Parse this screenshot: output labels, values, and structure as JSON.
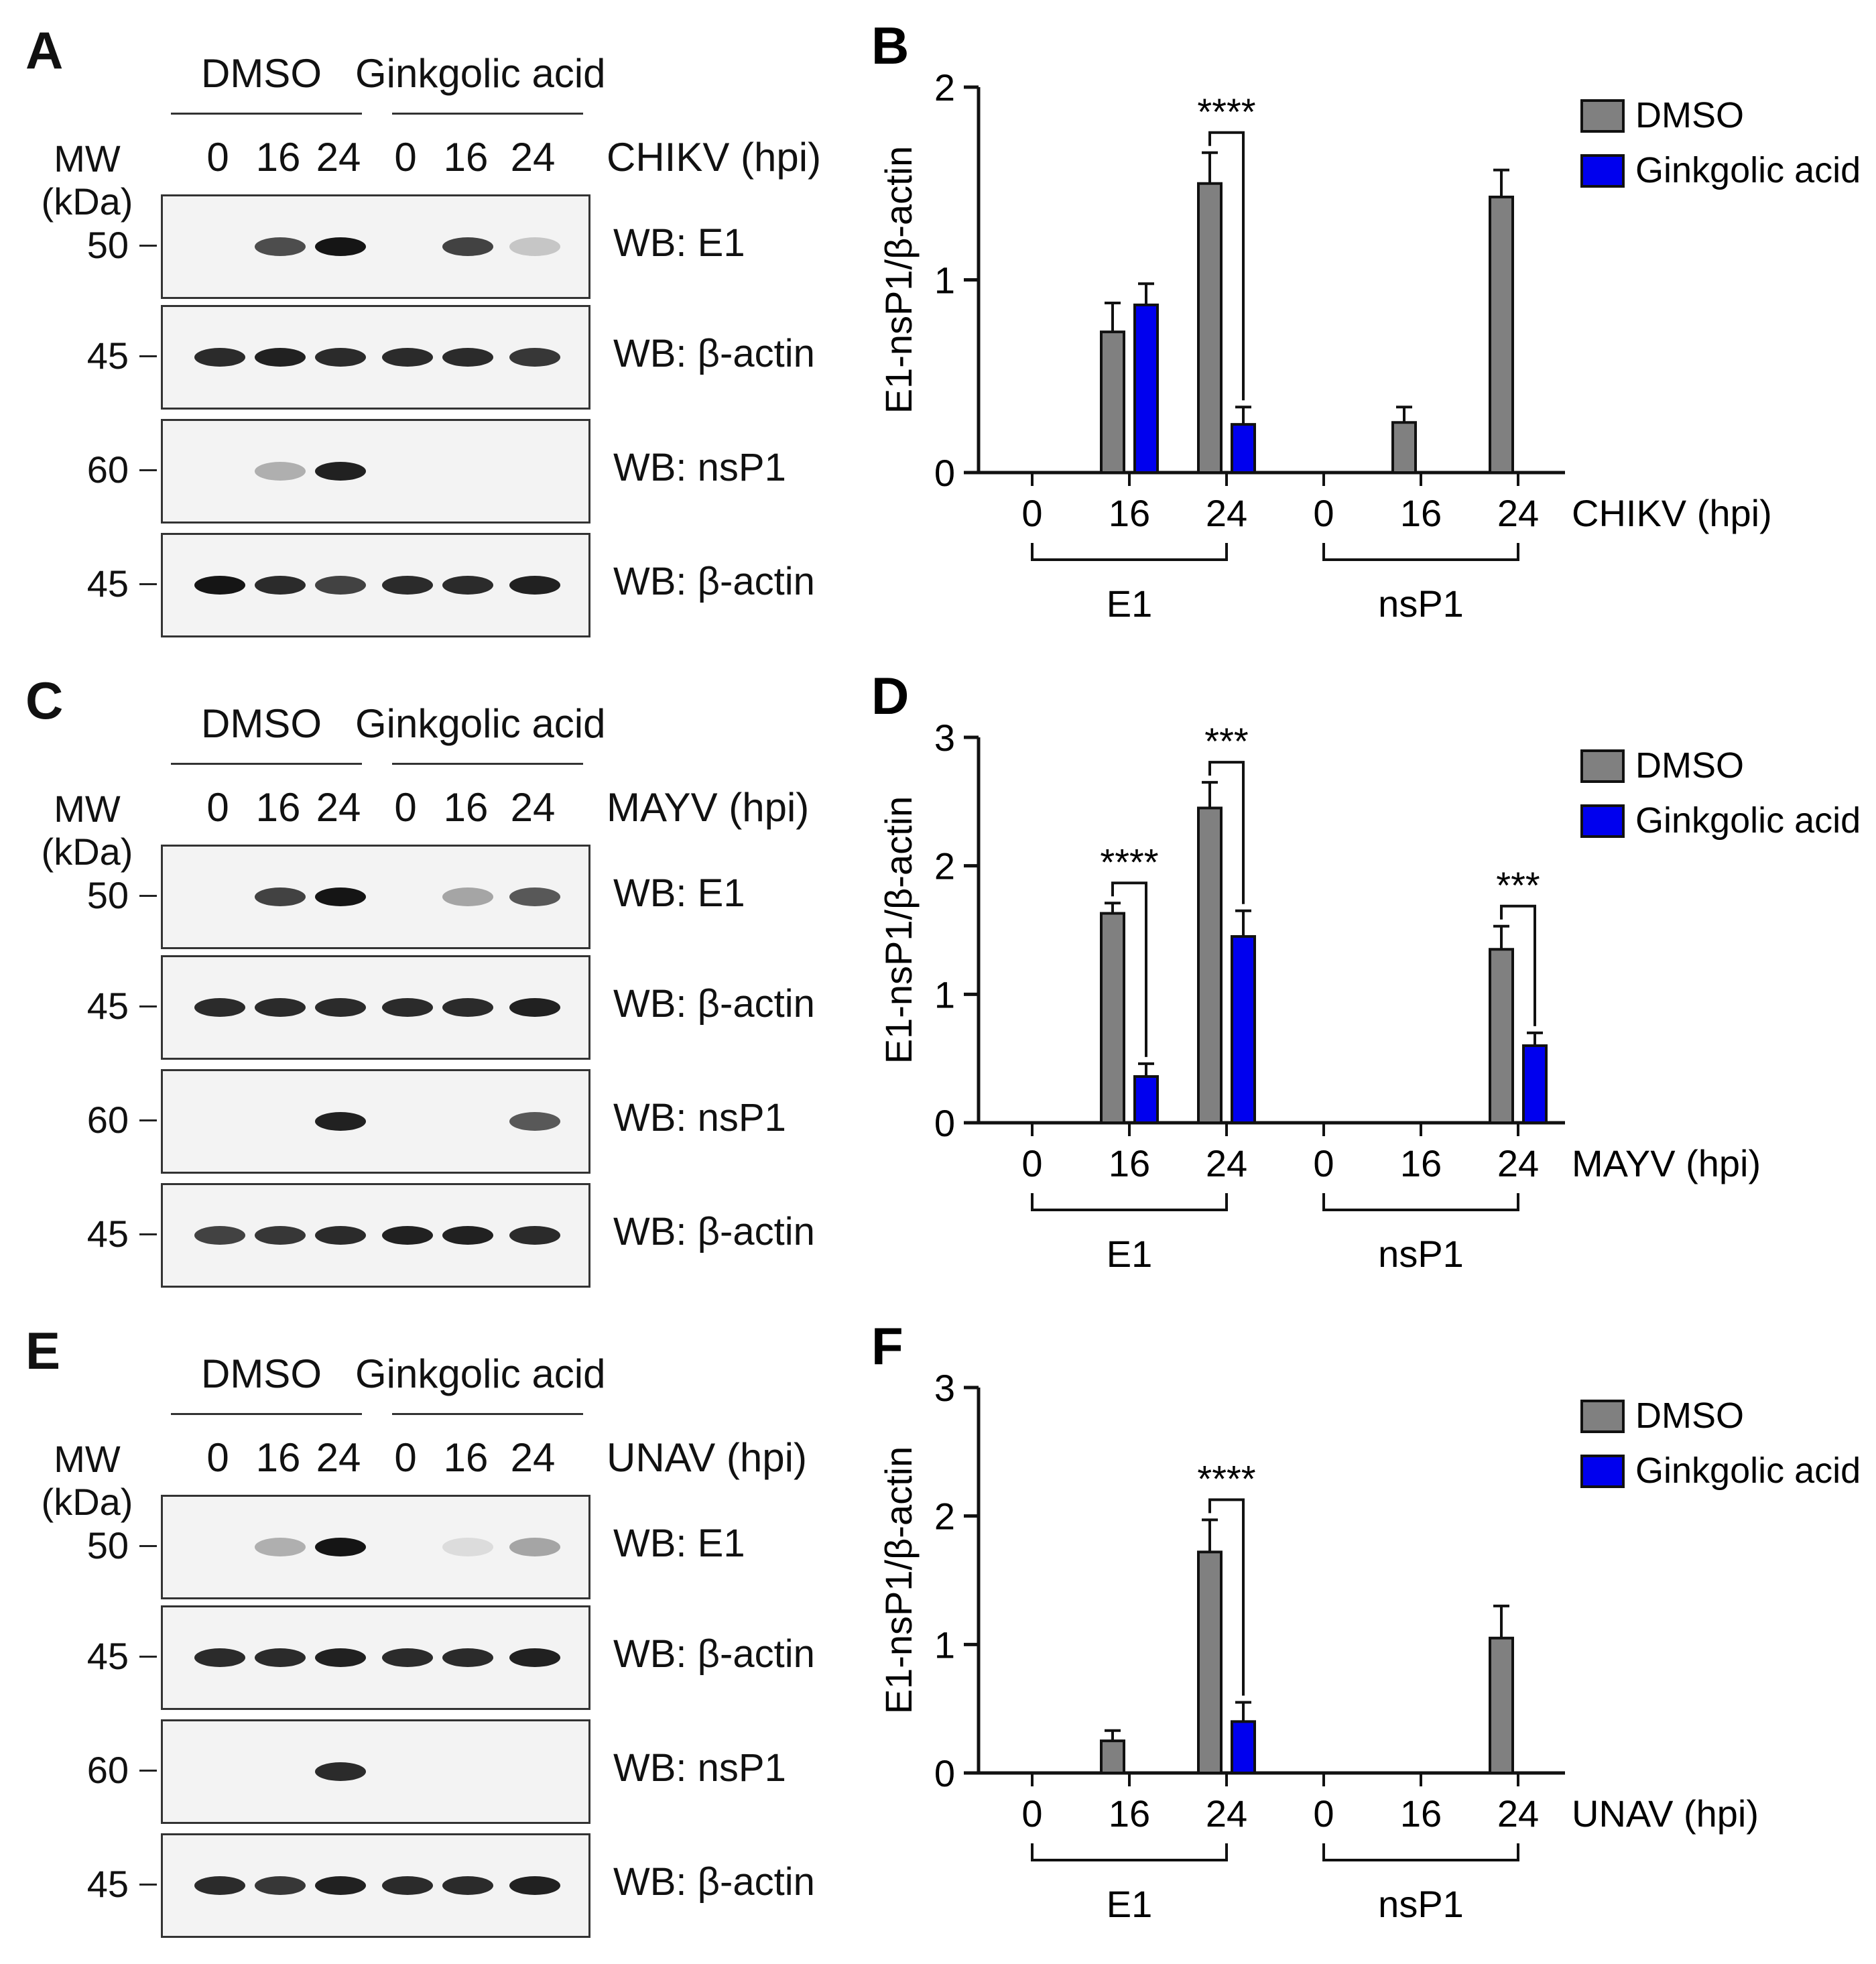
{
  "panels_blot": [
    {
      "letter": "A",
      "treatments": [
        "DMSO",
        "Ginkgolic acid"
      ],
      "lanes": [
        "0",
        "16",
        "24",
        "0",
        "16",
        "24"
      ],
      "virus_label": "CHIKV (hpi)",
      "mw_header": [
        "MW",
        "(kDa)"
      ],
      "blots": [
        {
          "mw": "50",
          "label": "WB: E1",
          "band_intensity": [
            0,
            0.75,
            1.0,
            0,
            0.8,
            0.2
          ]
        },
        {
          "mw": "45",
          "label": "WB: β-actin",
          "band_intensity": [
            0.9,
            0.95,
            0.9,
            0.9,
            0.9,
            0.85
          ]
        },
        {
          "mw": "60",
          "label": "WB: nsP1",
          "band_intensity": [
            0,
            0.3,
            0.95,
            0,
            0,
            0
          ]
        },
        {
          "mw": "45",
          "label": "WB: β-actin",
          "band_intensity": [
            1.0,
            0.9,
            0.8,
            0.9,
            0.9,
            0.95
          ]
        }
      ]
    },
    {
      "letter": "C",
      "treatments": [
        "DMSO",
        "Ginkgolic acid"
      ],
      "lanes": [
        "0",
        "16",
        "24",
        "0",
        "16",
        "24"
      ],
      "virus_label": "MAYV (hpi)",
      "mw_header": [
        "MW",
        "(kDa)"
      ],
      "blots": [
        {
          "mw": "50",
          "label": "WB: E1",
          "band_intensity": [
            0,
            0.8,
            1.0,
            0,
            0.35,
            0.7
          ]
        },
        {
          "mw": "45",
          "label": "WB: β-actin",
          "band_intensity": [
            0.9,
            0.9,
            0.9,
            0.9,
            0.9,
            0.95
          ]
        },
        {
          "mw": "60",
          "label": "WB: nsP1",
          "band_intensity": [
            0,
            0,
            0.95,
            0,
            0,
            0.7
          ]
        },
        {
          "mw": "45",
          "label": "WB: β-actin",
          "band_intensity": [
            0.8,
            0.85,
            0.9,
            0.95,
            0.95,
            0.9
          ]
        }
      ]
    },
    {
      "letter": "E",
      "treatments": [
        "DMSO",
        "Ginkgolic acid"
      ],
      "lanes": [
        "0",
        "16",
        "24",
        "0",
        "16",
        "24"
      ],
      "virus_label": "UNAV (hpi)",
      "mw_header": [
        "MW",
        "(kDa)"
      ],
      "blots": [
        {
          "mw": "50",
          "label": "WB: E1",
          "band_intensity": [
            0,
            0.3,
            1.0,
            0,
            0.1,
            0.35
          ]
        },
        {
          "mw": "45",
          "label": "WB: β-actin",
          "band_intensity": [
            0.9,
            0.9,
            0.95,
            0.9,
            0.9,
            0.95
          ]
        },
        {
          "mw": "60",
          "label": "WB: nsP1",
          "band_intensity": [
            0,
            0,
            0.9,
            0,
            0,
            0
          ]
        },
        {
          "mw": "45",
          "label": "WB: β-actin",
          "band_intensity": [
            0.9,
            0.85,
            0.95,
            0.9,
            0.9,
            0.95
          ]
        }
      ]
    }
  ],
  "chart_data": [
    {
      "letter": "B",
      "type": "bar",
      "ylabel": "E1-nsP1/β-actin",
      "ylim": [
        0,
        2
      ],
      "yticks": [
        "0",
        "1",
        "2"
      ],
      "xlabel": "CHIKV (hpi)",
      "x_ticks": [
        "0",
        "16",
        "24",
        "0",
        "16",
        "24"
      ],
      "groups": [
        "E1",
        "nsP1"
      ],
      "legend": [
        "DMSO",
        "Ginkgolic acid"
      ],
      "series": [
        {
          "name": "DMSO",
          "color": "#808080",
          "values": [
            0,
            0.73,
            1.5,
            0,
            0.26,
            1.43
          ],
          "errors": [
            0,
            0.15,
            0.16,
            0,
            0.08,
            0.14
          ]
        },
        {
          "name": "Ginkgolic acid",
          "color": "#0000ee",
          "values": [
            0,
            0.87,
            0.25,
            0,
            0,
            0
          ],
          "errors": [
            0,
            0.11,
            0.09,
            0,
            0,
            0
          ]
        }
      ],
      "significance": [
        {
          "index": 2,
          "label": "****"
        }
      ]
    },
    {
      "letter": "D",
      "type": "bar",
      "ylabel": "E1-nsP1/β-actin",
      "ylim": [
        0,
        3
      ],
      "yticks": [
        "0",
        "1",
        "2",
        "3"
      ],
      "xlabel": "MAYV (hpi)",
      "x_ticks": [
        "0",
        "16",
        "24",
        "0",
        "16",
        "24"
      ],
      "groups": [
        "E1",
        "nsP1"
      ],
      "legend": [
        "DMSO",
        "Ginkgolic acid"
      ],
      "series": [
        {
          "name": "DMSO",
          "color": "#808080",
          "values": [
            0,
            1.63,
            2.45,
            0,
            0,
            1.35
          ],
          "errors": [
            0,
            0.08,
            0.2,
            0,
            0,
            0.18
          ]
        },
        {
          "name": "Ginkgolic acid",
          "color": "#0000ee",
          "values": [
            0,
            0.36,
            1.45,
            0,
            0,
            0.6
          ],
          "errors": [
            0,
            0.1,
            0.2,
            0,
            0,
            0.1
          ]
        }
      ],
      "significance": [
        {
          "index": 1,
          "label": "****"
        },
        {
          "index": 2,
          "label": "***"
        },
        {
          "index": 5,
          "label": "***"
        }
      ]
    },
    {
      "letter": "F",
      "type": "bar",
      "ylabel": "E1-nsP1/β-actin",
      "ylim": [
        0,
        3
      ],
      "yticks": [
        "0",
        "1",
        "2",
        "3"
      ],
      "xlabel": "UNAV (hpi)",
      "x_ticks": [
        "0",
        "16",
        "24",
        "0",
        "16",
        "24"
      ],
      "groups": [
        "E1",
        "nsP1"
      ],
      "legend": [
        "DMSO",
        "Ginkgolic acid"
      ],
      "series": [
        {
          "name": "DMSO",
          "color": "#808080",
          "values": [
            0,
            0.25,
            1.72,
            0,
            0,
            1.05
          ],
          "errors": [
            0,
            0.08,
            0.25,
            0,
            0,
            0.25
          ]
        },
        {
          "name": "Ginkgolic acid",
          "color": "#0000ee",
          "values": [
            0,
            0,
            0.4,
            0,
            0,
            0
          ],
          "errors": [
            0,
            0,
            0.15,
            0,
            0,
            0
          ]
        }
      ],
      "significance": [
        {
          "index": 2,
          "label": "****"
        }
      ]
    }
  ]
}
